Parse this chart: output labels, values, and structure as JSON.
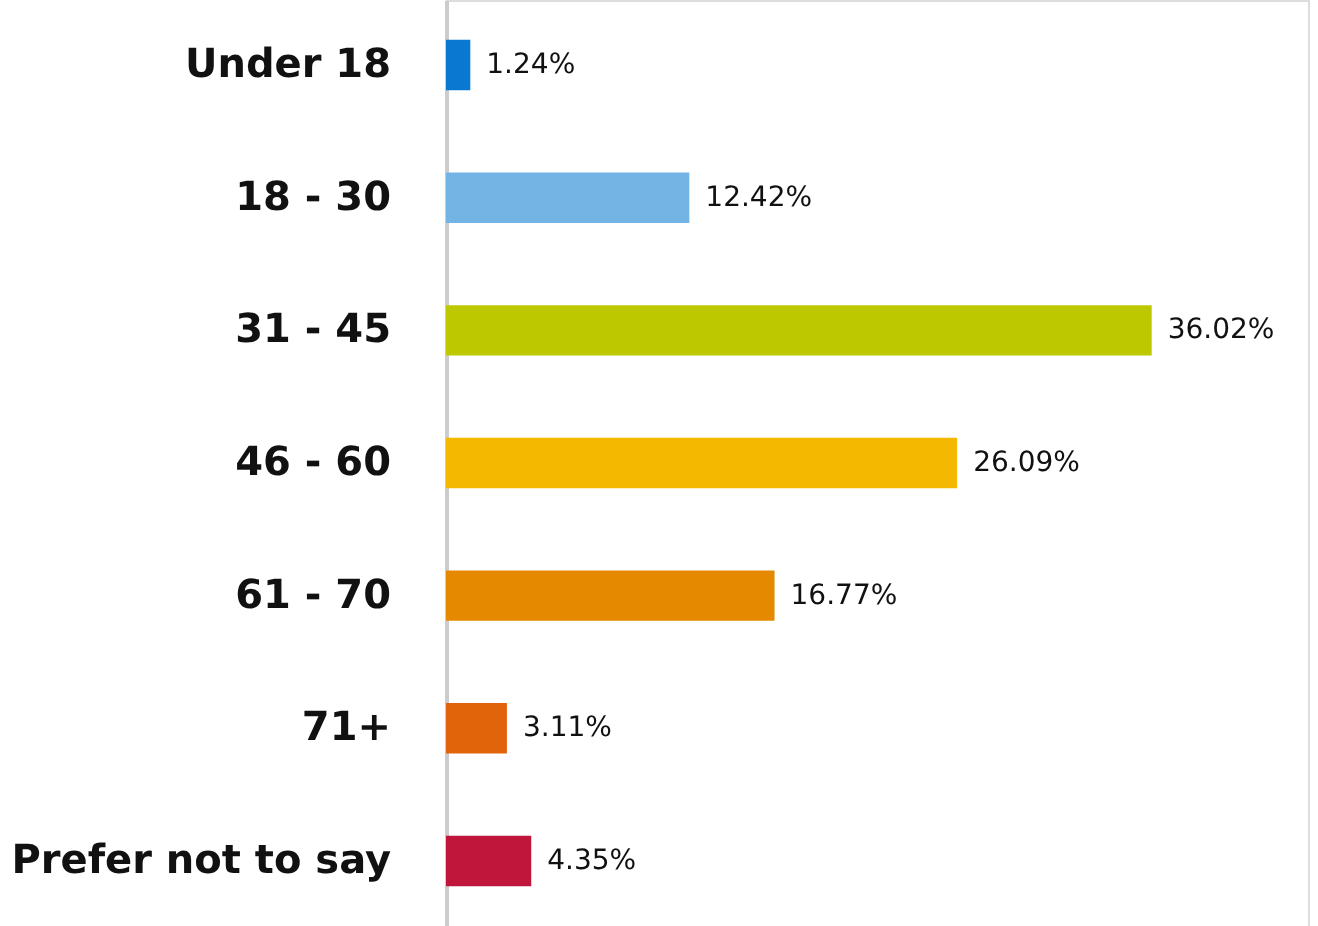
{
  "chart_data": {
    "type": "bar",
    "orientation": "horizontal",
    "categories": [
      "Under 18",
      "18 - 30",
      "31 - 45",
      "46 - 60",
      "61 - 70",
      "71+",
      "Prefer not to say"
    ],
    "values": [
      1.24,
      12.42,
      36.02,
      26.09,
      16.77,
      3.11,
      4.35
    ],
    "colors": [
      "#0a78d0",
      "#74b4e4",
      "#bdc800",
      "#f4b800",
      "#e58a00",
      "#e2640a",
      "#c0163c"
    ],
    "value_labels": [
      "1.24%",
      "12.42%",
      "36.02%",
      "26.09%",
      "16.77%",
      "3.11%",
      "4.35%"
    ],
    "xlim": [
      0,
      44
    ],
    "tick_labels": "y",
    "grid": false
  }
}
